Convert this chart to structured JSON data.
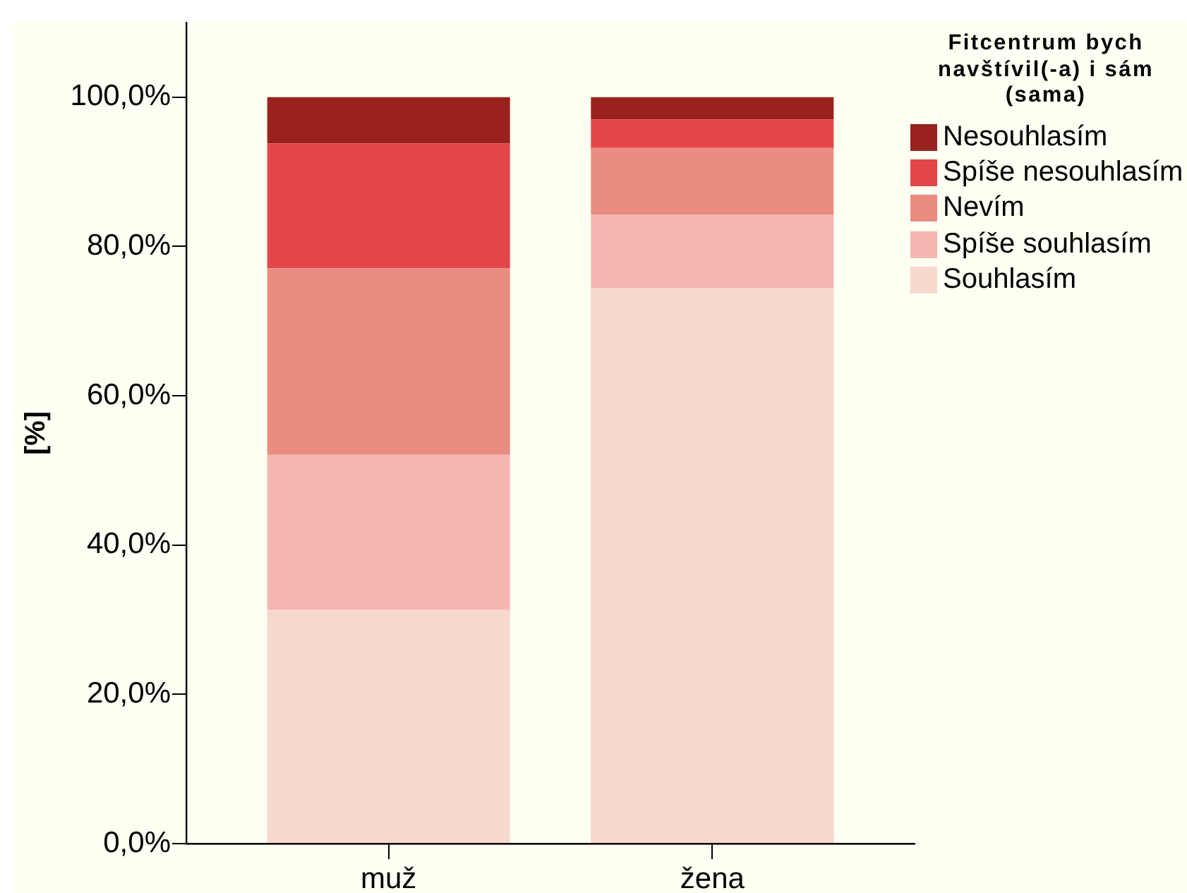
{
  "chart_data": {
    "type": "bar",
    "ylabel": "[%]",
    "legend_title": "Fitcentrum bych navštívil(-a) i sám (sama)",
    "categories": [
      "muž",
      "žena"
    ],
    "series": [
      {
        "name": "Souhlasím",
        "color": "#f6d9cc",
        "values": [
          31.3,
          74.4
        ]
      },
      {
        "name": "Spíše souhlasím",
        "color": "#f6b6b1",
        "values": [
          20.8,
          9.9
        ]
      },
      {
        "name": "Nevím",
        "color": "#ea8c80",
        "values": [
          25.0,
          8.9
        ]
      },
      {
        "name": "Spíše nesouhlasím",
        "color": "#e34548",
        "values": [
          16.7,
          3.8
        ]
      },
      {
        "name": "Nesouhlasím",
        "color": "#99221f",
        "values": [
          6.2,
          3.0
        ]
      }
    ],
    "stacked": true,
    "ylim": [
      0,
      110
    ],
    "yticks": [
      {
        "value": 0,
        "label": "0,0%"
      },
      {
        "value": 20,
        "label": "20,0%"
      },
      {
        "value": 40,
        "label": "40,0%"
      },
      {
        "value": 60,
        "label": "60,0%"
      },
      {
        "value": 80,
        "label": "80,0%"
      },
      {
        "value": 100,
        "label": "100,0%"
      }
    ],
    "legend": "top right"
  }
}
